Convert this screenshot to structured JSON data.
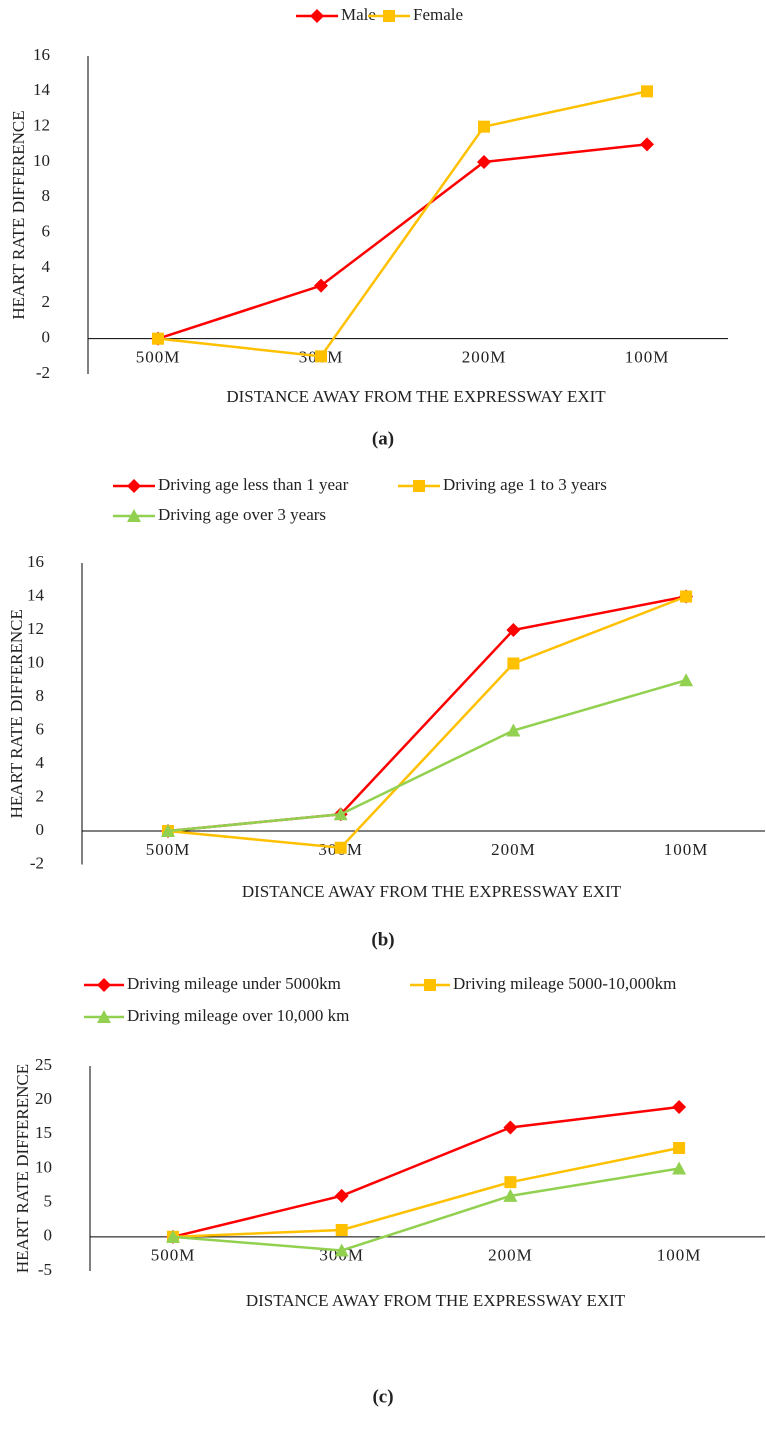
{
  "chart_data": [
    {
      "type": "line",
      "caption": "(a)",
      "categories": [
        "500M",
        "300M",
        "200M",
        "100M"
      ],
      "series": [
        {
          "name": "Male",
          "color": "#ff0000",
          "marker": "diamond",
          "values": [
            0,
            3,
            10,
            11
          ]
        },
        {
          "name": "Female",
          "color": "#ffc000",
          "marker": "square",
          "values": [
            0,
            -1,
            12,
            14
          ]
        }
      ],
      "ylim": [
        -2,
        16
      ],
      "yticks": [
        -2,
        0,
        2,
        4,
        6,
        8,
        10,
        12,
        14,
        16
      ],
      "xlabel": "DISTANCE AWAY FROM THE EXPRESSWAY EXIT",
      "ylabel": "HEART RATE DIFFERENCE",
      "legend": "top"
    },
    {
      "type": "line",
      "caption": "(b)",
      "categories": [
        "500M",
        "300M",
        "200M",
        "100M"
      ],
      "series": [
        {
          "name": "Driving age less than 1 year",
          "color": "#ff0000",
          "marker": "diamond",
          "values": [
            0,
            1,
            12,
            14
          ]
        },
        {
          "name": "Driving age 1 to 3 years",
          "color": "#ffc000",
          "marker": "square",
          "values": [
            0,
            -1,
            10,
            14
          ]
        },
        {
          "name": "Driving age over 3 years",
          "color": "#92d050",
          "marker": "triangle",
          "values": [
            0,
            1,
            6,
            9
          ]
        }
      ],
      "ylim": [
        -2,
        16
      ],
      "yticks": [
        -2,
        0,
        2,
        4,
        6,
        8,
        10,
        12,
        14,
        16
      ],
      "xlabel": "DISTANCE AWAY FROM THE EXPRESSWAY EXIT",
      "ylabel": "HEART RATE DIFFERENCE",
      "legend": "top"
    },
    {
      "type": "line",
      "caption": "(c)",
      "categories": [
        "500M",
        "300M",
        "200M",
        "100M"
      ],
      "series": [
        {
          "name": "Driving mileage under 5000km",
          "color": "#ff0000",
          "marker": "diamond",
          "values": [
            0,
            6,
            16,
            19
          ]
        },
        {
          "name": "Driving mileage 5000-10,000km",
          "color": "#ffc000",
          "marker": "square",
          "values": [
            0,
            1,
            8,
            13
          ]
        },
        {
          "name": "Driving mileage over 10,000 km",
          "color": "#92d050",
          "marker": "triangle",
          "values": [
            0,
            -2,
            6,
            10
          ]
        }
      ],
      "ylim": [
        -5,
        25
      ],
      "yticks": [
        -5,
        0,
        5,
        10,
        15,
        20,
        25
      ],
      "xlabel": "DISTANCE AWAY FROM THE EXPRESSWAY EXIT",
      "ylabel": "HEART RATE DIFFERENCE",
      "legend": "top"
    }
  ]
}
